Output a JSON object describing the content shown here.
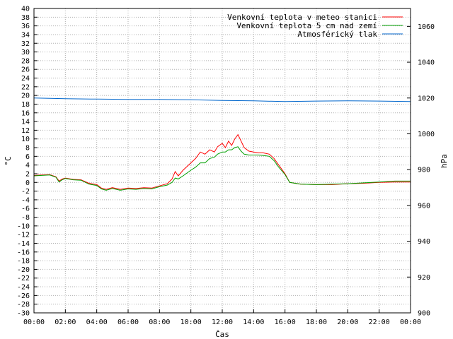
{
  "chart_data": {
    "type": "line",
    "xlabel": "Čas",
    "ylabel": "°C",
    "y2label": "hPa",
    "x_ticks": [
      "00:00",
      "02:00",
      "04:00",
      "06:00",
      "08:00",
      "10:00",
      "12:00",
      "14:00",
      "16:00",
      "18:00",
      "20:00",
      "22:00",
      "00:00"
    ],
    "xlim": [
      0,
      24
    ],
    "ylim": [
      -30,
      40
    ],
    "y_step": 2,
    "y2lim": [
      900,
      1070
    ],
    "y2_ticks": [
      900,
      920,
      940,
      960,
      980,
      1000,
      1020,
      1040,
      1060
    ],
    "grid": true,
    "legend_position": "top-right",
    "series": [
      {
        "name": "Venkovní teplota v meteo stanici",
        "color": "#ff0000",
        "axis": "y",
        "x": [
          0,
          0.5,
          1.0,
          1.4,
          1.6,
          1.8,
          2.0,
          2.5,
          3.0,
          3.5,
          4.0,
          4.3,
          4.6,
          5.0,
          5.5,
          6.0,
          6.5,
          7.0,
          7.5,
          8.0,
          8.5,
          8.8,
          9.0,
          9.2,
          9.5,
          10.0,
          10.3,
          10.6,
          10.9,
          11.2,
          11.5,
          11.7,
          12.0,
          12.2,
          12.4,
          12.6,
          12.8,
          13.0,
          13.2,
          13.4,
          13.7,
          14.0,
          14.3,
          14.6,
          15.0,
          15.3,
          15.6,
          16.0,
          16.3,
          17.0,
          18.0,
          19.0,
          20.0,
          21.0,
          22.0,
          23.0,
          24.0
        ],
        "values": [
          1.6,
          1.7,
          1.8,
          1.3,
          0.3,
          0.8,
          1.0,
          0.7,
          0.6,
          -0.2,
          -0.5,
          -1.3,
          -1.6,
          -1.2,
          -1.6,
          -1.3,
          -1.4,
          -1.2,
          -1.3,
          -0.8,
          -0.3,
          0.8,
          2.5,
          1.5,
          2.8,
          4.5,
          5.5,
          7.0,
          6.5,
          7.5,
          7.0,
          8.2,
          9.0,
          8.0,
          9.5,
          8.5,
          10.0,
          11.0,
          9.5,
          8.0,
          7.2,
          7.0,
          6.8,
          6.8,
          6.5,
          5.5,
          4.0,
          2.0,
          0.0,
          -0.4,
          -0.5,
          -0.5,
          -0.3,
          -0.2,
          0.0,
          0.1,
          0.1
        ]
      },
      {
        "name": "Venkovní teplota 5 cm nad zemí",
        "color": "#00a000",
        "axis": "y",
        "x": [
          0,
          0.5,
          1.0,
          1.4,
          1.6,
          1.8,
          2.0,
          2.5,
          3.0,
          3.5,
          4.0,
          4.3,
          4.6,
          5.0,
          5.5,
          6.0,
          6.5,
          7.0,
          7.5,
          8.0,
          8.5,
          8.8,
          9.0,
          9.2,
          9.5,
          10.0,
          10.3,
          10.6,
          10.9,
          11.2,
          11.5,
          11.7,
          12.0,
          12.2,
          12.4,
          12.6,
          12.8,
          13.0,
          13.2,
          13.4,
          13.7,
          14.0,
          14.3,
          14.6,
          15.0,
          15.3,
          15.6,
          16.0,
          16.3,
          17.0,
          18.0,
          19.0,
          20.0,
          21.0,
          22.0,
          23.0,
          24.0
        ],
        "values": [
          1.5,
          1.6,
          1.7,
          1.2,
          0.1,
          0.6,
          0.9,
          0.6,
          0.5,
          -0.4,
          -0.7,
          -1.5,
          -1.8,
          -1.4,
          -1.8,
          -1.5,
          -1.6,
          -1.4,
          -1.5,
          -1.0,
          -0.6,
          0.0,
          1.0,
          0.8,
          1.5,
          2.8,
          3.5,
          4.5,
          4.5,
          5.5,
          5.8,
          6.5,
          7.0,
          7.0,
          7.5,
          7.5,
          8.0,
          8.2,
          7.2,
          6.5,
          6.3,
          6.3,
          6.3,
          6.2,
          6.0,
          5.0,
          3.5,
          1.8,
          0.0,
          -0.4,
          -0.5,
          -0.4,
          -0.3,
          -0.1,
          0.1,
          0.3,
          0.3
        ]
      },
      {
        "name": "Atmosférický tlak",
        "color": "#0066cc",
        "axis": "y2",
        "x": [
          0,
          2,
          4,
          6,
          8,
          10,
          12,
          14,
          16,
          18,
          20,
          22,
          24
        ],
        "values": [
          1020.0,
          1019.6,
          1019.4,
          1019.2,
          1019.2,
          1019.0,
          1018.6,
          1018.4,
          1018.0,
          1018.3,
          1018.4,
          1018.3,
          1018.0
        ]
      }
    ]
  }
}
